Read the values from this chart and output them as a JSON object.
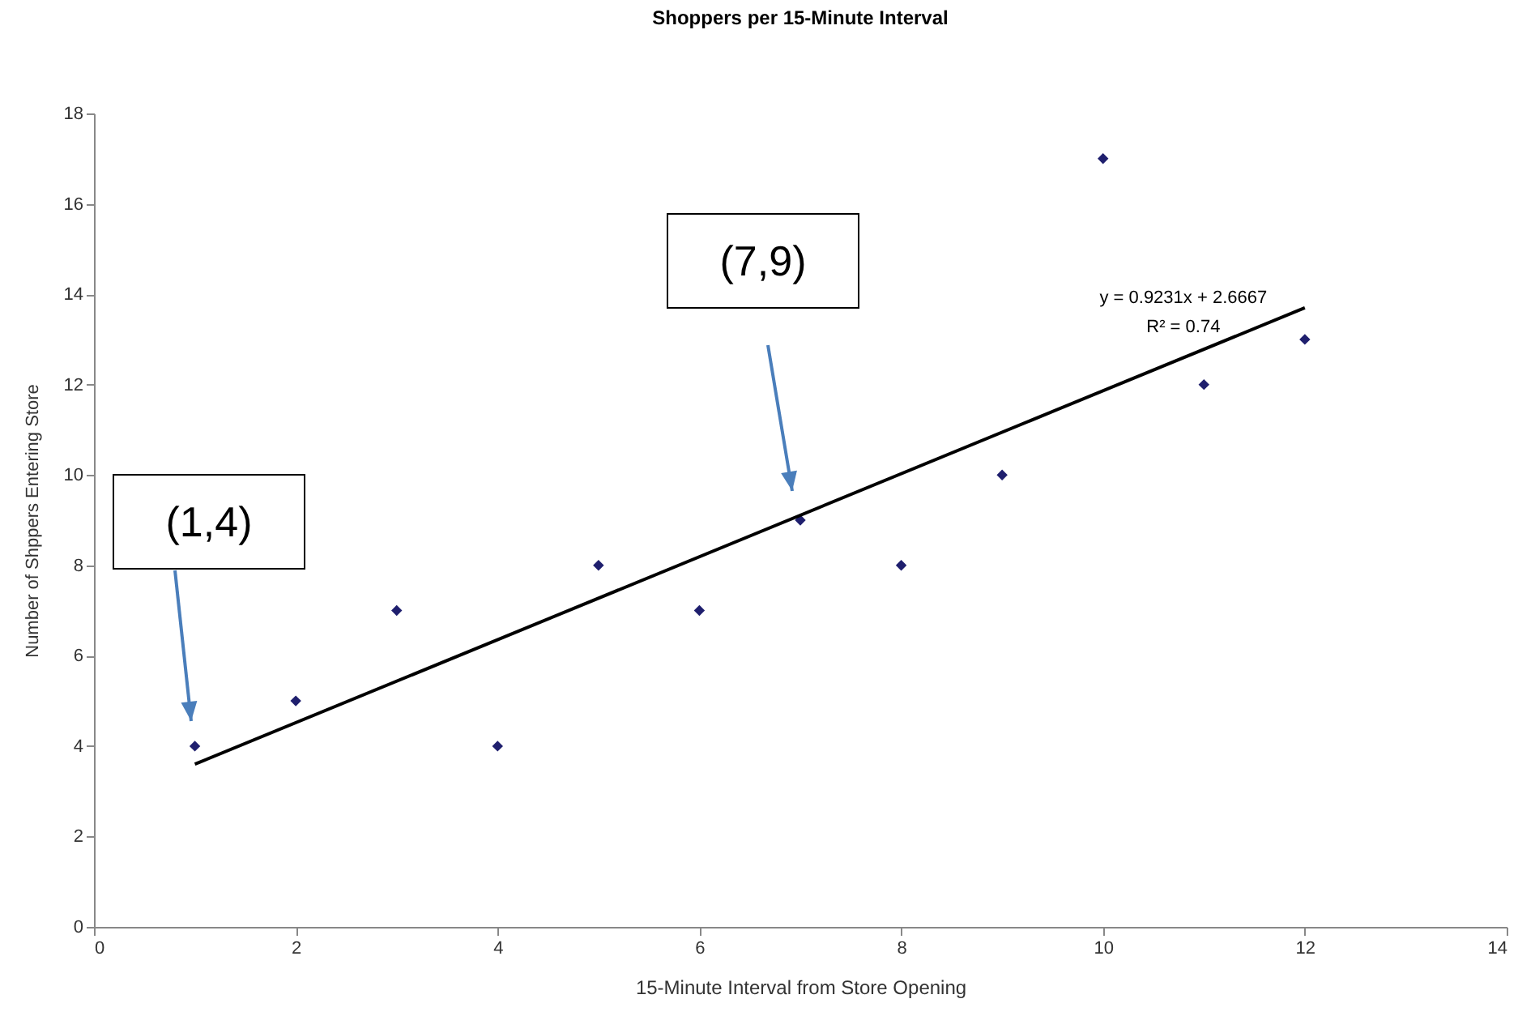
{
  "chart_data": {
    "type": "scatter",
    "title": "Shoppers per 15-Minute Interval",
    "xlabel": "15-Minute Interval from Store Opening",
    "ylabel": "Number of Shppers Entering Store",
    "xlim": [
      0,
      14
    ],
    "xticks": [
      0,
      2,
      4,
      6,
      8,
      10,
      12,
      14
    ],
    "ylim": [
      0,
      18
    ],
    "yticks": [
      0,
      2,
      4,
      6,
      8,
      10,
      12,
      14,
      16,
      18
    ],
    "marker": "diamond",
    "grid": false,
    "legend": false,
    "series": [
      {
        "color": "#1f1f6e",
        "x": [
          1,
          2,
          3,
          4,
          5,
          6,
          7,
          8,
          9,
          10,
          11,
          12
        ],
        "values": [
          4,
          5,
          7,
          4,
          8,
          7,
          9,
          8,
          10,
          17,
          12,
          13
        ]
      },
      {
        "type": "line",
        "marker": "none",
        "color": "#000000",
        "x": [
          1,
          12
        ],
        "values": [
          3.6,
          13.7
        ]
      }
    ],
    "annotations": [
      "(1,4)",
      "(7,9)",
      "y = 0.9231x + 2.6667",
      "R² = 0.74"
    ]
  }
}
